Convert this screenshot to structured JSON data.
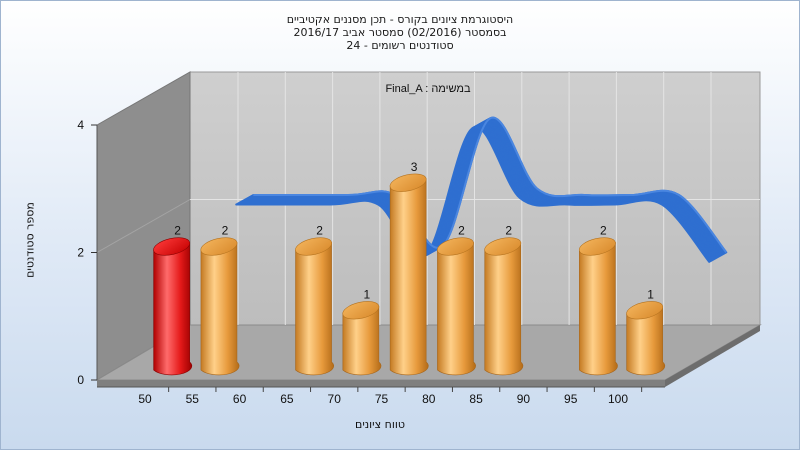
{
  "header": {
    "lines": [
      "היסטוגרמת ציונים בקורס - תכן מסננים אקטיביים",
      "בסמסטר  (02/2016)  סמסטר אביב 2016/17",
      "24 - סטודנטים רשומים"
    ]
  },
  "chart_data": {
    "type": "bar",
    "title": "היסטוגרמת ציונים בקורס - תכן מסננים אקטיביים",
    "subtitle": "בסמסטר  (02/2016)  סמסטר אביב 2016/17",
    "annotation": "Final_A : במשימה",
    "xlabel": "טווח ציונים",
    "ylabel": "מספר סטודנטים",
    "x_ticks": [
      "50",
      "55",
      "60",
      "65",
      "70",
      "75",
      "80",
      "85",
      "90",
      "95",
      "100"
    ],
    "y_ticks": [
      "0",
      "2",
      "4"
    ],
    "ylim": [
      0,
      4
    ],
    "grid": true,
    "bars": [
      {
        "range": "50-55",
        "value": 2,
        "label": "2",
        "highlight": true
      },
      {
        "range": "55-60",
        "value": 2,
        "label": "2"
      },
      {
        "range": "60-65",
        "value": 0,
        "label": ""
      },
      {
        "range": "65-70",
        "value": 2,
        "label": "2"
      },
      {
        "range": "70-75",
        "value": 1,
        "label": "1"
      },
      {
        "range": "75-80",
        "value": 3,
        "label": "3"
      },
      {
        "range": "80-85",
        "value": 2,
        "label": "2"
      },
      {
        "range": "85-90",
        "value": 2,
        "label": "2"
      },
      {
        "range": "90-95",
        "value": 0,
        "label": ""
      },
      {
        "range": "95-100",
        "value": 2,
        "label": "2"
      },
      {
        "range": "100",
        "value": 1,
        "label": "1"
      }
    ],
    "ribbon": {
      "x": [
        55,
        65,
        70,
        75,
        80,
        85,
        90,
        95,
        100,
        105
      ],
      "y": [
        2.4,
        2.4,
        2.4,
        1.6,
        3.6,
        2.5,
        2.4,
        2.4,
        2.4,
        1.5
      ]
    },
    "colors": {
      "bar": "#e8a24a",
      "bar_highlight": "#e01010",
      "ribbon": "#2f6fd0",
      "ribbon_flat": "#6e6e6e",
      "back_wall": "#c8c8c8",
      "side_wall": "#8f8f8f",
      "floor": "#a9a9a9"
    }
  }
}
